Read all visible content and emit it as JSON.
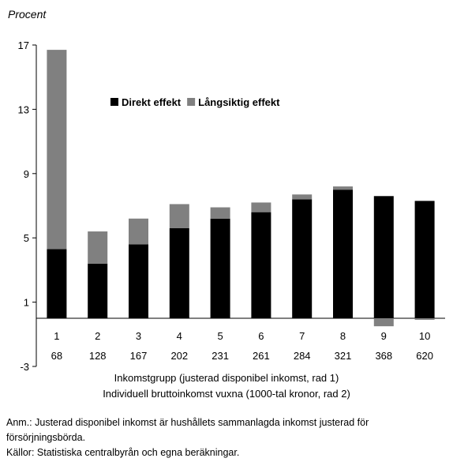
{
  "chart_data": {
    "type": "bar",
    "stacked": true,
    "ylabel": "Procent",
    "ylim": [
      -3,
      17
    ],
    "yticks": [
      -3,
      1,
      5,
      9,
      13,
      17
    ],
    "categories": [
      "1",
      "2",
      "3",
      "4",
      "5",
      "6",
      "7",
      "8",
      "9",
      "10"
    ],
    "categories_row2": [
      "68",
      "128",
      "167",
      "202",
      "231",
      "261",
      "284",
      "321",
      "368",
      "620"
    ],
    "series": [
      {
        "name": "Direkt effekt",
        "color": "#000000",
        "values": [
          4.3,
          3.4,
          4.6,
          5.6,
          6.2,
          6.6,
          7.4,
          8.0,
          7.6,
          7.3
        ]
      },
      {
        "name": "Långsiktig effekt",
        "color": "#808080",
        "values": [
          12.4,
          2.0,
          1.6,
          1.5,
          0.7,
          0.6,
          0.3,
          0.2,
          -0.5,
          -0.1
        ]
      }
    ],
    "xlabel_line1": "Inkomstgrupp (justerad disponibel inkomst, rad 1)",
    "xlabel_line2": "Individuell bruttoinkomst vuxna (1000-tal kronor, rad 2)",
    "legend_position": "upper-middle"
  },
  "notes": {
    "anm_line1": "Anm.: Justerad disponibel inkomst är hushållets sammanlagda inkomst justerad för",
    "anm_line2": "försörjningsbörda.",
    "source": "Källor: Statistiska centralbyrån och egna beräkningar."
  }
}
